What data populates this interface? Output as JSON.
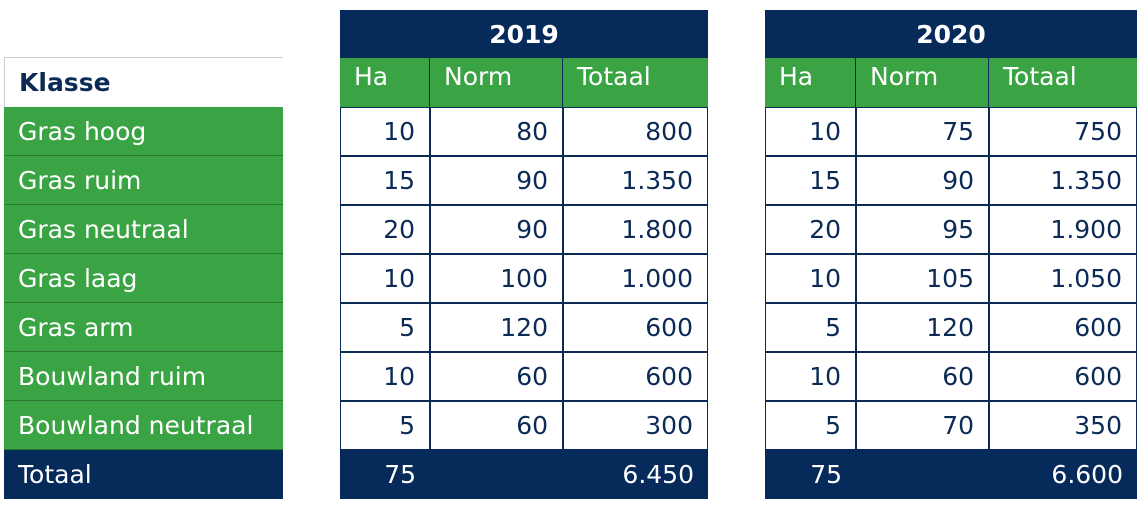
{
  "header": {
    "klasse_label": "Klasse",
    "years": [
      "2019",
      "2020"
    ],
    "subcols": [
      "Ha",
      "Norm",
      "Totaal"
    ]
  },
  "rows": [
    {
      "label": "Gras hoog",
      "y2019": {
        "ha": "10",
        "norm": "80",
        "totaal": "800"
      },
      "y2020": {
        "ha": "10",
        "norm": "75",
        "totaal": "750"
      }
    },
    {
      "label": "Gras ruim",
      "y2019": {
        "ha": "15",
        "norm": "90",
        "totaal": "1.350"
      },
      "y2020": {
        "ha": "15",
        "norm": "90",
        "totaal": "1.350"
      }
    },
    {
      "label": "Gras neutraal",
      "y2019": {
        "ha": "20",
        "norm": "90",
        "totaal": "1.800"
      },
      "y2020": {
        "ha": "20",
        "norm": "95",
        "totaal": "1.900"
      }
    },
    {
      "label": "Gras laag",
      "y2019": {
        "ha": "10",
        "norm": "100",
        "totaal": "1.000"
      },
      "y2020": {
        "ha": "10",
        "norm": "105",
        "totaal": "1.050"
      }
    },
    {
      "label": "Gras arm",
      "y2019": {
        "ha": "5",
        "norm": "120",
        "totaal": "600"
      },
      "y2020": {
        "ha": "5",
        "norm": "120",
        "totaal": "600"
      }
    },
    {
      "label": "Bouwland ruim",
      "y2019": {
        "ha": "10",
        "norm": "60",
        "totaal": "600"
      },
      "y2020": {
        "ha": "10",
        "norm": "60",
        "totaal": "600"
      }
    },
    {
      "label": "Bouwland neutraal",
      "y2019": {
        "ha": "5",
        "norm": "60",
        "totaal": "300"
      },
      "y2020": {
        "ha": "5",
        "norm": "70",
        "totaal": "350"
      }
    }
  ],
  "totals": {
    "label": "Totaal",
    "y2019": {
      "ha": "75",
      "totaal": "6.450"
    },
    "y2020": {
      "ha": "75",
      "totaal": "6.600"
    }
  },
  "colors": {
    "navy": "#062a5a",
    "green": "#3aa444",
    "text": "#0b2a55"
  }
}
